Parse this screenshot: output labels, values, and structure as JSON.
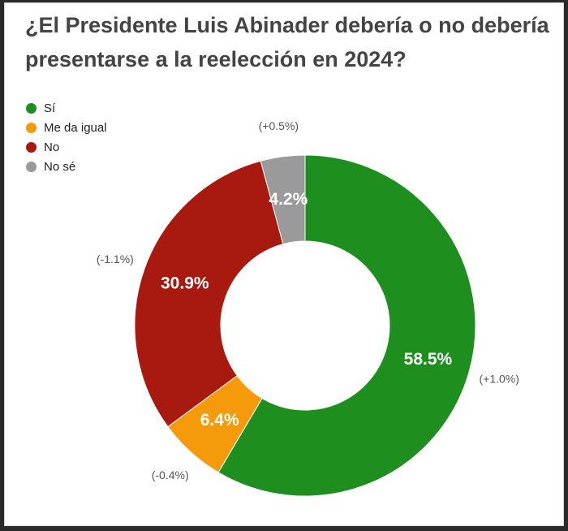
{
  "title": "¿El Presidente Luis Abinader debería o no debería presentarse a la reelección en 2024?",
  "chart_data": {
    "type": "pie",
    "variant": "donut",
    "categories": [
      "Sí",
      "Me da igual",
      "No",
      "No sé"
    ],
    "values": [
      58.5,
      6.4,
      30.9,
      4.2
    ],
    "value_labels": [
      "58.5%",
      "6.4%",
      "30.9%",
      "4.2%"
    ],
    "change_labels": [
      "(+1.0%)",
      "(-0.4%)",
      "(-1.1%)",
      "(+0.5%)"
    ],
    "colors": [
      "#1e8f1e",
      "#f59a0b",
      "#a8190f",
      "#9a9a9a"
    ],
    "legend_position": "top-left"
  }
}
